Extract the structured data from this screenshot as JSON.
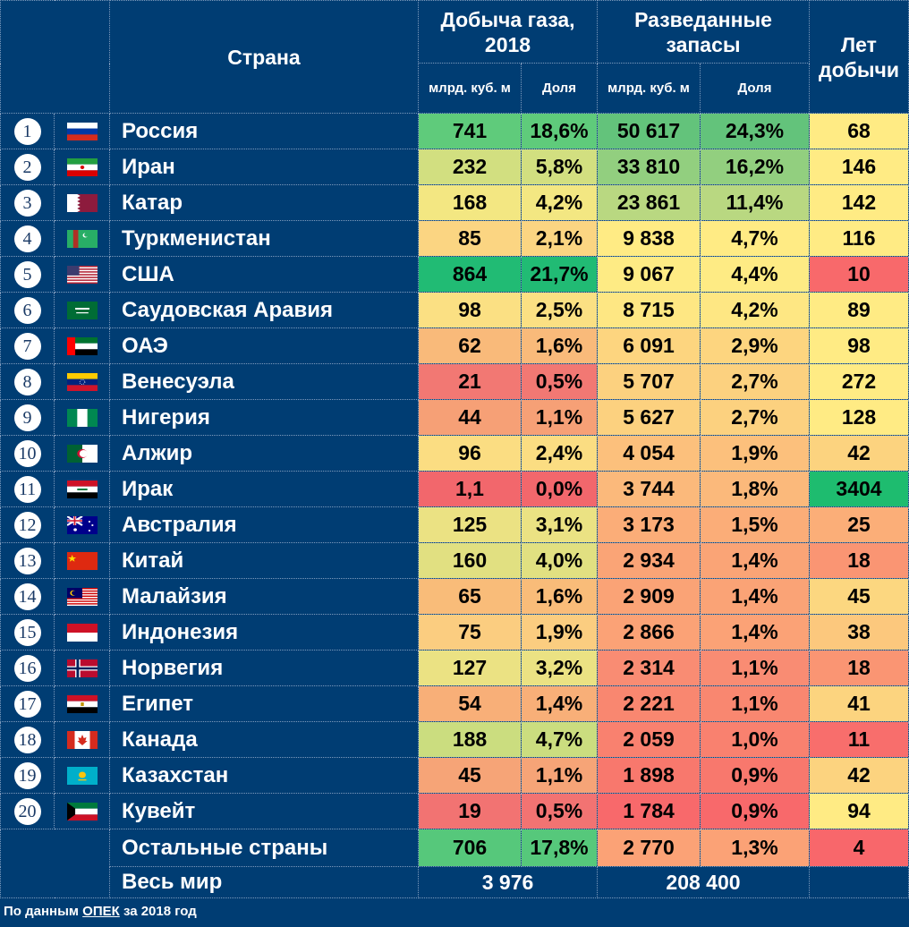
{
  "header": {
    "country": "Страна",
    "production_title": "Добыча газа, 2018",
    "reserves_title": "Разведанные запасы",
    "years": "Лет добычи",
    "unit": "млрд. куб. м",
    "share": "Доля"
  },
  "rows": [
    {
      "rank": "1",
      "flag": "russia-flag",
      "name": "Россия",
      "prod": "741",
      "prod_share": "18,6%",
      "res": "50 617",
      "res_share": "24,3%",
      "years": "68"
    },
    {
      "rank": "2",
      "flag": "iran-flag",
      "name": "Иран",
      "prod": "232",
      "prod_share": "5,8%",
      "res": "33 810",
      "res_share": "16,2%",
      "years": "146"
    },
    {
      "rank": "3",
      "flag": "qatar-flag",
      "name": "Катар",
      "prod": "168",
      "prod_share": "4,2%",
      "res": "23 861",
      "res_share": "11,4%",
      "years": "142"
    },
    {
      "rank": "4",
      "flag": "turkmenistan-flag",
      "name": "Туркменистан",
      "prod": "85",
      "prod_share": "2,1%",
      "res": "9 838",
      "res_share": "4,7%",
      "years": "116"
    },
    {
      "rank": "5",
      "flag": "usa-flag",
      "name": "США",
      "prod": "864",
      "prod_share": "21,7%",
      "res": "9 067",
      "res_share": "4,4%",
      "years": "10"
    },
    {
      "rank": "6",
      "flag": "saudi-arabia-flag",
      "name": "Саудовская Аравия",
      "prod": "98",
      "prod_share": "2,5%",
      "res": "8 715",
      "res_share": "4,2%",
      "years": "89"
    },
    {
      "rank": "7",
      "flag": "uae-flag",
      "name": "ОАЭ",
      "prod": "62",
      "prod_share": "1,6%",
      "res": "6 091",
      "res_share": "2,9%",
      "years": "98"
    },
    {
      "rank": "8",
      "flag": "venezuela-flag",
      "name": "Венесуэла",
      "prod": "21",
      "prod_share": "0,5%",
      "res": "5 707",
      "res_share": "2,7%",
      "years": "272"
    },
    {
      "rank": "9",
      "flag": "nigeria-flag",
      "name": "Нигерия",
      "prod": "44",
      "prod_share": "1,1%",
      "res": "5 627",
      "res_share": "2,7%",
      "years": "128"
    },
    {
      "rank": "10",
      "flag": "algeria-flag",
      "name": "Алжир",
      "prod": "96",
      "prod_share": "2,4%",
      "res": "4 054",
      "res_share": "1,9%",
      "years": "42"
    },
    {
      "rank": "11",
      "flag": "iraq-flag",
      "name": "Ирак",
      "prod": "1,1",
      "prod_share": "0,0%",
      "res": "3 744",
      "res_share": "1,8%",
      "years": "3404"
    },
    {
      "rank": "12",
      "flag": "australia-flag",
      "name": "Австралия",
      "prod": "125",
      "prod_share": "3,1%",
      "res": "3 173",
      "res_share": "1,5%",
      "years": "25"
    },
    {
      "rank": "13",
      "flag": "china-flag",
      "name": "Китай",
      "prod": "160",
      "prod_share": "4,0%",
      "res": "2 934",
      "res_share": "1,4%",
      "years": "18"
    },
    {
      "rank": "14",
      "flag": "malaysia-flag",
      "name": "Малайзия",
      "prod": "65",
      "prod_share": "1,6%",
      "res": "2 909",
      "res_share": "1,4%",
      "years": "45"
    },
    {
      "rank": "15",
      "flag": "indonesia-flag",
      "name": "Индонезия",
      "prod": "75",
      "prod_share": "1,9%",
      "res": "2 866",
      "res_share": "1,4%",
      "years": "38"
    },
    {
      "rank": "16",
      "flag": "norway-flag",
      "name": "Норвегия",
      "prod": "127",
      "prod_share": "3,2%",
      "res": "2 314",
      "res_share": "1,1%",
      "years": "18"
    },
    {
      "rank": "17",
      "flag": "egypt-flag",
      "name": "Египет",
      "prod": "54",
      "prod_share": "1,4%",
      "res": "2 221",
      "res_share": "1,1%",
      "years": "41"
    },
    {
      "rank": "18",
      "flag": "canada-flag",
      "name": "Канада",
      "prod": "188",
      "prod_share": "4,7%",
      "res": "2 059",
      "res_share": "1,0%",
      "years": "11"
    },
    {
      "rank": "19",
      "flag": "kazakhstan-flag",
      "name": "Казахстан",
      "prod": "45",
      "prod_share": "1,1%",
      "res": "1 898",
      "res_share": "0,9%",
      "years": "42"
    },
    {
      "rank": "20",
      "flag": "kuwait-flag",
      "name": "Кувейт",
      "prod": "19",
      "prod_share": "0,5%",
      "res": "1 784",
      "res_share": "0,9%",
      "years": "94"
    }
  ],
  "others": {
    "name": "Остальные страны",
    "prod": "706",
    "prod_share": "17,8%",
    "res": "2 770",
    "res_share": "1,3%",
    "years": "4"
  },
  "world": {
    "name": "Весь мир",
    "prod": "3 976",
    "res": "208 400"
  },
  "footer": {
    "prefix": "По данным ",
    "source": "ОПЕК",
    "suffix": " за 2018 год"
  },
  "colors": {
    "background": "#003d73",
    "prod": [
      "#5fcb7b",
      "#d2df80",
      "#f3e782",
      "#fbd582",
      "#21bb74",
      "#fbe083",
      "#f9ba7a",
      "#f27873",
      "#f6a076",
      "#fbdd82",
      "#f2676c",
      "#ebe283",
      "#e1e081",
      "#f9bc79",
      "#fbcd80",
      "#ebe283",
      "#f8af78",
      "#cbdd7f",
      "#f6a477",
      "#f27372",
      "#56c87b"
    ],
    "prod_share": [
      "#5fcb7b",
      "#d2df80",
      "#f3e782",
      "#fbd582",
      "#21bb74",
      "#fbe083",
      "#f9ba7a",
      "#f27873",
      "#f6a076",
      "#fbdd82",
      "#f2676c",
      "#ebe283",
      "#e1e081",
      "#f9bc79",
      "#fbcd80",
      "#ebe283",
      "#f8af78",
      "#cbdd7f",
      "#f6a477",
      "#f27372",
      "#56c87b"
    ],
    "res": [
      "#63c37b",
      "#92cf7f",
      "#b9d881",
      "#ffeb84",
      "#feeb84",
      "#fee783",
      "#fdd57f",
      "#fcd17f",
      "#fcd17f",
      "#fcc07c",
      "#fbb97b",
      "#fbad78",
      "#faa476",
      "#faa376",
      "#fba276",
      "#f98c73",
      "#f98770",
      "#f9816f",
      "#f8786d",
      "#f8696b",
      "#fba276"
    ],
    "res_share": [
      "#63c37b",
      "#92cf7f",
      "#b9d881",
      "#ffeb84",
      "#feeb84",
      "#fee783",
      "#fdd57f",
      "#fcd17f",
      "#fcd17f",
      "#fcc07c",
      "#fbb97b",
      "#fbad78",
      "#faa476",
      "#faa376",
      "#fba276",
      "#f98c73",
      "#f98770",
      "#f9816f",
      "#f8786d",
      "#f8696b",
      "#fba276"
    ],
    "years": [
      "#ffeb84",
      "#ffeb84",
      "#ffeb84",
      "#ffeb84",
      "#f8696b",
      "#ffeb84",
      "#ffeb84",
      "#ffeb84",
      "#ffeb84",
      "#fcd37f",
      "#1ebc6f",
      "#fbae78",
      "#fa9573",
      "#fcd780",
      "#fcc87d",
      "#fa9573",
      "#fcd47f",
      "#f86e6c",
      "#fcd37f",
      "#ffeb84",
      "#f8676b"
    ]
  }
}
